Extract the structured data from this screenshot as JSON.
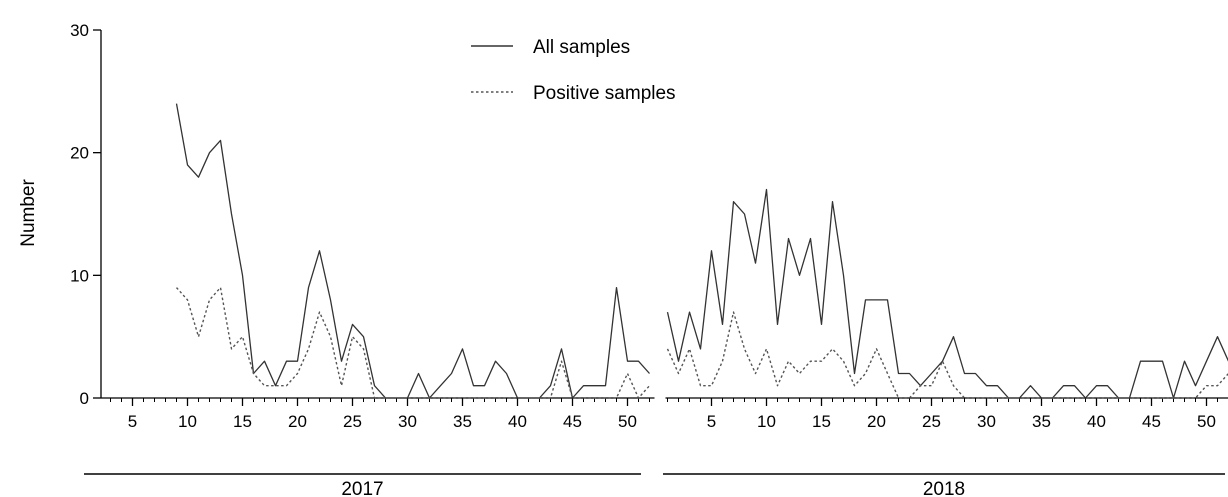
{
  "chart_data": {
    "type": "line",
    "ylabel": "Number",
    "ylim": [
      0,
      30
    ],
    "y_ticks": [
      "0",
      "10",
      "20",
      "30"
    ],
    "legend_position": "top-center",
    "years": [
      {
        "label": "2017",
        "week_range": [
          1,
          52
        ],
        "tick_labels": [
          "5",
          "10",
          "15",
          "20",
          "25",
          "30",
          "35",
          "40",
          "45",
          "50"
        ],
        "tick_weeks": [
          5,
          10,
          15,
          20,
          25,
          30,
          35,
          40,
          45,
          50
        ]
      },
      {
        "label": "2018",
        "week_range": [
          1,
          52
        ],
        "tick_labels": [
          "5",
          "10",
          "15",
          "20",
          "25",
          "30",
          "35",
          "40",
          "45",
          "50"
        ],
        "tick_weeks": [
          5,
          10,
          15,
          20,
          25,
          30,
          35,
          40,
          45,
          50
        ]
      }
    ],
    "series": [
      {
        "name": "All samples",
        "style": "solid",
        "color": "#333333",
        "segments": [
          {
            "year": 0,
            "weeks": [
              9,
              10,
              11,
              12,
              13,
              14,
              15,
              16,
              17,
              18,
              19,
              20,
              21,
              22,
              23,
              24,
              25,
              26,
              27,
              28,
              29,
              30,
              31,
              32,
              33,
              34,
              35,
              36,
              37,
              38,
              39,
              40,
              41,
              42,
              43,
              44,
              45,
              46,
              47,
              48,
              49,
              50,
              51,
              52
            ],
            "values": [
              24,
              19,
              18,
              20,
              21,
              15,
              10,
              2,
              3,
              1,
              3,
              3,
              9,
              12,
              8,
              3,
              6,
              5,
              1,
              0,
              0,
              0,
              2,
              0,
              1,
              2,
              4,
              1,
              1,
              3,
              2,
              0,
              0,
              0,
              1,
              4,
              0,
              1,
              1,
              1,
              9,
              3,
              3,
              2
            ]
          },
          {
            "year": 1,
            "weeks": [
              1,
              2,
              3,
              4,
              5,
              6,
              7,
              8,
              9,
              10,
              11,
              12,
              13,
              14,
              15,
              16,
              17,
              18,
              19,
              20,
              21,
              22,
              23,
              24,
              25,
              26,
              27,
              28,
              29,
              30,
              31,
              32,
              33,
              34,
              35,
              36,
              37,
              38,
              39,
              40,
              41,
              42,
              43,
              44,
              45,
              46,
              47,
              48,
              49,
              50,
              51,
              52
            ],
            "values": [
              7,
              3,
              7,
              4,
              12,
              6,
              16,
              15,
              11,
              17,
              6,
              13,
              10,
              13,
              6,
              16,
              10,
              2,
              8,
              8,
              8,
              2,
              2,
              1,
              2,
              3,
              5,
              2,
              2,
              1,
              1,
              0,
              0,
              1,
              0,
              0,
              1,
              1,
              0,
              1,
              1,
              0,
              0,
              3,
              3,
              3,
              0,
              3,
              1,
              3,
              5,
              3
            ]
          }
        ]
      },
      {
        "name": "Positive samples",
        "style": "dotted",
        "color": "#555555",
        "segments": [
          {
            "year": 0,
            "weeks": [
              9,
              10,
              11,
              12,
              13,
              14,
              15,
              16,
              17,
              18,
              19,
              20,
              21,
              22,
              23,
              24,
              25,
              26,
              27,
              28,
              29,
              30,
              31,
              32,
              33,
              34,
              35,
              36,
              37,
              38,
              39,
              40,
              41,
              42,
              43,
              44,
              45,
              46,
              47,
              48,
              49,
              50,
              51,
              52
            ],
            "values": [
              9,
              8,
              5,
              8,
              9,
              4,
              5,
              2,
              1,
              1,
              1,
              2,
              4,
              7,
              5,
              1,
              5,
              4,
              0,
              0,
              0,
              0,
              0,
              0,
              0,
              0,
              0,
              0,
              0,
              0,
              0,
              0,
              0,
              0,
              0,
              3,
              0,
              0,
              0,
              0,
              0,
              2,
              0,
              1
            ]
          },
          {
            "year": 1,
            "weeks": [
              1,
              2,
              3,
              4,
              5,
              6,
              7,
              8,
              9,
              10,
              11,
              12,
              13,
              14,
              15,
              16,
              17,
              18,
              19,
              20,
              21,
              22,
              23,
              24,
              25,
              26,
              27,
              28,
              29,
              30,
              31,
              32,
              33,
              34,
              35,
              36,
              37,
              38,
              39,
              40,
              41,
              42,
              43,
              44,
              45,
              46,
              47,
              48,
              49,
              50,
              51,
              52
            ],
            "values": [
              4,
              2,
              4,
              1,
              1,
              3,
              7,
              4,
              2,
              4,
              1,
              3,
              2,
              3,
              3,
              4,
              3,
              1,
              2,
              4,
              2,
              0,
              0,
              1,
              1,
              3,
              1,
              0,
              0,
              0,
              0,
              0,
              0,
              0,
              0,
              0,
              0,
              0,
              0,
              0,
              0,
              0,
              0,
              0,
              0,
              0,
              0,
              0,
              0,
              1,
              1,
              2
            ]
          }
        ]
      }
    ]
  }
}
